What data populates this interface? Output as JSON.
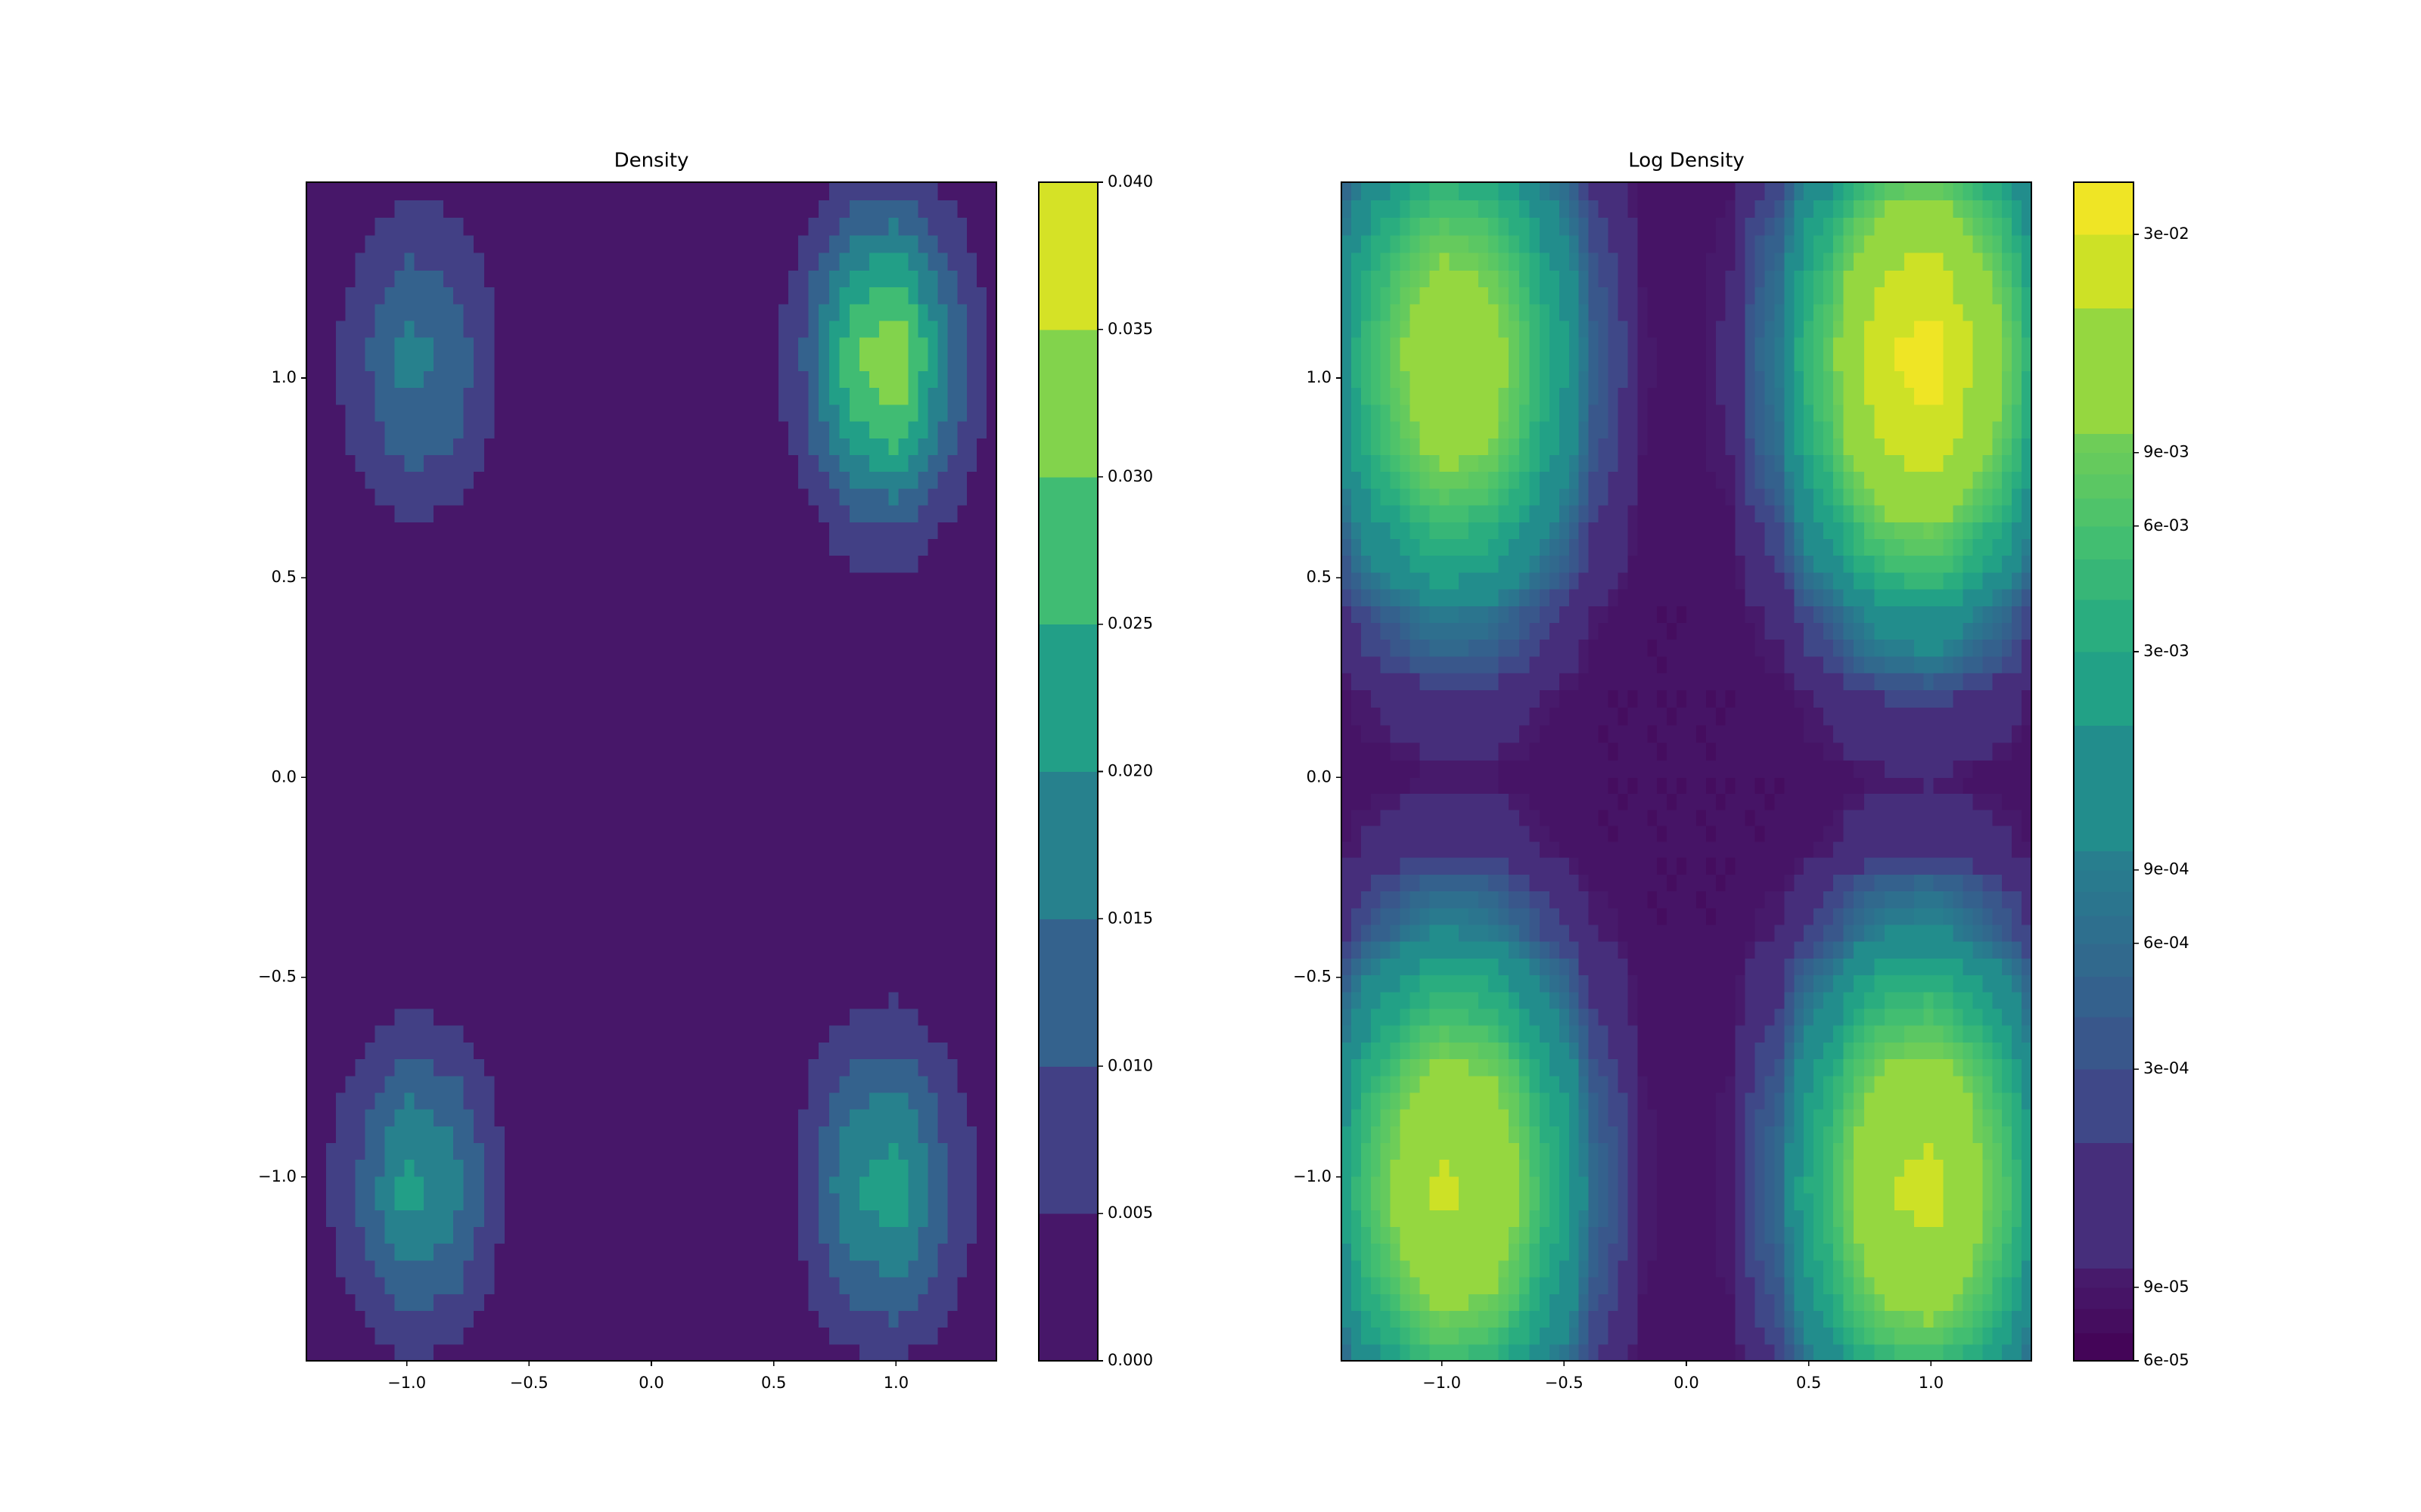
{
  "chart_data": [
    {
      "type": "contourf",
      "title": "Density",
      "colormap": "viridis",
      "color_scale": "linear",
      "x": [
        -1.41,
        -1.21,
        -1.01,
        -0.81,
        -0.6,
        -0.4,
        -0.2,
        0,
        0.2,
        0.4,
        0.6,
        0.81,
        1.01,
        1.21,
        1.41
      ],
      "y": [
        -1.46,
        -1.25,
        -1.04,
        -0.83,
        -0.62,
        -0.41,
        -0.2,
        0,
        0.22,
        0.43,
        0.64,
        0.85,
        1.06,
        1.27,
        1.49
      ],
      "z": [
        [
          0.00041,
          0.0021,
          0.0045,
          0.0037,
          0.0011,
          0.00019,
          8.4e-05,
          8e-05,
          8.4e-05,
          0.0002,
          0.0012,
          0.004,
          0.0049,
          0.0022,
          0.00044
        ],
        [
          0.0011,
          0.0065,
          0.0144,
          0.0118,
          0.0033,
          0.00042,
          9.3e-05,
          8e-05,
          9.4e-05,
          0.00045,
          0.0036,
          0.0128,
          0.0156,
          0.0071,
          0.0012
        ],
        [
          0.0017,
          0.01,
          0.022,
          0.018,
          0.0051,
          0.00061,
          0.0001,
          8e-05,
          0.0001,
          0.00066,
          0.0055,
          0.0197,
          0.024,
          0.0108,
          0.0019
        ],
        [
          0.0013,
          0.0075,
          0.0166,
          0.0136,
          0.0038,
          0.00048,
          9.5e-05,
          8e-05,
          9.6e-05,
          0.00051,
          0.0041,
          0.0148,
          0.018,
          0.0081,
          0.0014
        ],
        [
          0.00054,
          0.0029,
          0.0062,
          0.0051,
          0.0015,
          0.00023,
          8.6e-05,
          8e-05,
          8.6e-05,
          0.00024,
          0.0016,
          0.0056,
          0.0068,
          0.0031,
          0.00058
        ],
        [
          0.00016,
          0.00058,
          0.0012,
          0.00098,
          0.00033,
          0.00011,
          8e-05,
          8e-05,
          8e-05,
          0.00011,
          0.00035,
          0.0011,
          0.0013,
          0.00062,
          0.00017
        ],
        [
          8.8e-05,
          0.00013,
          0.00018,
          0.00016,
          0.0001,
          8e-05,
          8e-05,
          8e-05,
          8e-05,
          8e-05,
          0.0001,
          0.00017,
          0.00019,
          0.00013,
          8.8e-05
        ],
        [
          8e-05,
          8e-05,
          8.7e-05,
          8.5e-05,
          8e-05,
          8e-05,
          8e-05,
          8e-05,
          8e-05,
          8e-05,
          8e-05,
          8.9e-05,
          9.1e-05,
          8e-05,
          8e-05
        ],
        [
          8.6e-05,
          0.000116,
          0.000159,
          0.000145,
          9.8e-05,
          8e-05,
          8e-05,
          8e-05,
          8e-05,
          8.4e-05,
          0.000118,
          0.000217,
          0.000247,
          0.000155,
          9.2e-05
        ],
        [
          0.00014,
          0.00047,
          0.00094,
          0.00079,
          0.00027,
          0.0001,
          8e-05,
          8e-05,
          8.2e-05,
          0.00012,
          0.00049,
          0.0016,
          0.0019,
          0.0009,
          0.00022
        ],
        [
          0.00044,
          0.0023,
          0.0049,
          0.004,
          0.0012,
          0.0002,
          8.4e-05,
          8e-05,
          8.9e-05,
          0.00033,
          0.0024,
          0.0084,
          0.0103,
          0.0047,
          0.00084
        ],
        [
          0.001,
          0.0059,
          0.013,
          0.0107,
          0.003,
          0.00039,
          9.2e-05,
          8e-05,
          0.000105,
          0.00074,
          0.0062,
          0.0224,
          0.0273,
          0.0123,
          0.0021
        ],
        [
          0.0014,
          0.0078,
          0.0173,
          0.0142,
          0.004,
          0.00049,
          9.6e-05,
          8e-05,
          0.000113,
          0.00095,
          0.0083,
          0.0298,
          0.0364,
          0.0164,
          0.0028
        ],
        [
          0.00091,
          0.0051,
          0.0113,
          0.0092,
          0.0026,
          0.00035,
          9e-05,
          8e-05,
          0.000102,
          0.00065,
          0.0054,
          0.0194,
          0.0237,
          0.0107,
          0.0018
        ],
        [
          0.00034,
          0.0016,
          0.0035,
          0.0029,
          0.00086,
          0.00016,
          8.3e-05,
          8e-05,
          8.7e-05,
          0.00026,
          0.0017,
          0.006,
          0.0074,
          0.0034,
          0.00062
        ]
      ],
      "levels": [
        0,
        0.005,
        0.01,
        0.015,
        0.02,
        0.025,
        0.03,
        0.035,
        0.04
      ],
      "xlim": [
        -1.41,
        1.41
      ],
      "ylim": [
        -1.46,
        1.49
      ],
      "xticks": [
        {
          "value": -1,
          "label": "−1.0"
        },
        {
          "value": -0.5,
          "label": "−0.5"
        },
        {
          "value": 0,
          "label": "0.0"
        },
        {
          "value": 0.5,
          "label": "0.5"
        },
        {
          "value": 1,
          "label": "1.0"
        }
      ],
      "yticks": [
        {
          "value": -1,
          "label": "−1.0"
        },
        {
          "value": -0.5,
          "label": "−0.5"
        },
        {
          "value": 0,
          "label": "0.0"
        },
        {
          "value": 0.5,
          "label": "0.5"
        },
        {
          "value": 1,
          "label": "1.0"
        }
      ],
      "colorbar_lim": [
        0,
        0.04
      ],
      "colorbar_ticks": [
        {
          "value": 0,
          "label": "0.000"
        },
        {
          "value": 0.005,
          "label": "0.005"
        },
        {
          "value": 0.01,
          "label": "0.010"
        },
        {
          "value": 0.015,
          "label": "0.015"
        },
        {
          "value": 0.02,
          "label": "0.020"
        },
        {
          "value": 0.025,
          "label": "0.025"
        },
        {
          "value": 0.03,
          "label": "0.030"
        },
        {
          "value": 0.035,
          "label": "0.035"
        },
        {
          "value": 0.04,
          "label": "0.040"
        }
      ]
    },
    {
      "type": "contourf",
      "title": "Log Density",
      "colormap": "viridis",
      "color_scale": "log",
      "x": [
        -1.41,
        -1.21,
        -1.01,
        -0.81,
        -0.6,
        -0.4,
        -0.2,
        0,
        0.2,
        0.4,
        0.6,
        0.81,
        1.01,
        1.21,
        1.41
      ],
      "y": [
        -1.46,
        -1.25,
        -1.04,
        -0.83,
        -0.62,
        -0.41,
        -0.2,
        0,
        0.22,
        0.43,
        0.64,
        0.85,
        1.06,
        1.27,
        1.49
      ],
      "z": [
        [
          0.00041,
          0.0021,
          0.0045,
          0.0037,
          0.0011,
          0.00019,
          8.4e-05,
          8e-05,
          8.4e-05,
          0.0002,
          0.0012,
          0.004,
          0.0049,
          0.0022,
          0.00044
        ],
        [
          0.0011,
          0.0065,
          0.0144,
          0.0118,
          0.0033,
          0.00042,
          9.3e-05,
          8e-05,
          9.4e-05,
          0.00045,
          0.0036,
          0.0128,
          0.0156,
          0.0071,
          0.0012
        ],
        [
          0.0017,
          0.01,
          0.022,
          0.018,
          0.0051,
          0.00061,
          0.0001,
          8e-05,
          0.0001,
          0.00066,
          0.0055,
          0.0197,
          0.024,
          0.0108,
          0.0019
        ],
        [
          0.0013,
          0.0075,
          0.0166,
          0.0136,
          0.0038,
          0.00048,
          9.5e-05,
          8e-05,
          9.6e-05,
          0.00051,
          0.0041,
          0.0148,
          0.018,
          0.0081,
          0.0014
        ],
        [
          0.00054,
          0.0029,
          0.0062,
          0.0051,
          0.0015,
          0.00023,
          8.6e-05,
          8e-05,
          8.6e-05,
          0.00024,
          0.0016,
          0.0056,
          0.0068,
          0.0031,
          0.00058
        ],
        [
          0.00016,
          0.00058,
          0.0012,
          0.00098,
          0.00033,
          0.00011,
          8e-05,
          8e-05,
          8e-05,
          0.00011,
          0.00035,
          0.0011,
          0.0013,
          0.00062,
          0.00017
        ],
        [
          8.8e-05,
          0.00013,
          0.00018,
          0.00016,
          0.0001,
          8e-05,
          8e-05,
          8e-05,
          8e-05,
          8e-05,
          0.0001,
          0.00017,
          0.00019,
          0.00013,
          8.8e-05
        ],
        [
          8e-05,
          8e-05,
          8.7e-05,
          8.5e-05,
          8e-05,
          8e-05,
          8e-05,
          8e-05,
          8e-05,
          8e-05,
          8e-05,
          8.9e-05,
          9.1e-05,
          8e-05,
          8e-05
        ],
        [
          8.6e-05,
          0.000116,
          0.000159,
          0.000145,
          9.8e-05,
          8e-05,
          8e-05,
          8e-05,
          8e-05,
          8.4e-05,
          0.000118,
          0.000217,
          0.000247,
          0.000155,
          9.2e-05
        ],
        [
          0.00014,
          0.00047,
          0.00094,
          0.00079,
          0.00027,
          0.0001,
          8e-05,
          8e-05,
          8.2e-05,
          0.00012,
          0.00049,
          0.0016,
          0.0019,
          0.0009,
          0.00022
        ],
        [
          0.00044,
          0.0023,
          0.0049,
          0.004,
          0.0012,
          0.0002,
          8.4e-05,
          8e-05,
          8.9e-05,
          0.00033,
          0.0024,
          0.0084,
          0.0103,
          0.0047,
          0.00084
        ],
        [
          0.001,
          0.0059,
          0.013,
          0.0107,
          0.003,
          0.00039,
          9.2e-05,
          8e-05,
          0.000105,
          0.00074,
          0.0062,
          0.0224,
          0.0273,
          0.0123,
          0.0021
        ],
        [
          0.0014,
          0.0078,
          0.0173,
          0.0142,
          0.004,
          0.00049,
          9.6e-05,
          8e-05,
          0.000113,
          0.00095,
          0.0083,
          0.0298,
          0.0364,
          0.0164,
          0.0028
        ],
        [
          0.00091,
          0.0051,
          0.0113,
          0.0092,
          0.0026,
          0.00035,
          9e-05,
          8e-05,
          0.000102,
          0.00065,
          0.0054,
          0.0194,
          0.0237,
          0.0107,
          0.0018
        ],
        [
          0.00034,
          0.0016,
          0.0035,
          0.0029,
          0.00086,
          0.00016,
          8.3e-05,
          8e-05,
          8.7e-05,
          0.00026,
          0.0017,
          0.006,
          0.0074,
          0.0034,
          0.00062
        ]
      ],
      "levels": [
        6e-05,
        7e-05,
        8e-05,
        9e-05,
        0.0001,
        0.0002,
        0.0003,
        0.0004,
        0.0005,
        0.0006,
        0.0007,
        0.0008,
        0.0009,
        0.001,
        0.002,
        0.003,
        0.004,
        0.005,
        0.006,
        0.007,
        0.008,
        0.009,
        0.01,
        0.02,
        0.03,
        0.04
      ],
      "xlim": [
        -1.41,
        1.41
      ],
      "ylim": [
        -1.46,
        1.49
      ],
      "xticks": [
        {
          "value": -1,
          "label": "−1.0"
        },
        {
          "value": -0.5,
          "label": "−0.5"
        },
        {
          "value": 0,
          "label": "0.0"
        },
        {
          "value": 0.5,
          "label": "0.5"
        },
        {
          "value": 1,
          "label": "1.0"
        }
      ],
      "yticks": [
        {
          "value": -1,
          "label": "−1.0"
        },
        {
          "value": -0.5,
          "label": "−0.5"
        },
        {
          "value": 0,
          "label": "0.0"
        },
        {
          "value": 0.5,
          "label": "0.5"
        },
        {
          "value": 1,
          "label": "1.0"
        }
      ],
      "colorbar_lim": [
        6e-05,
        0.04
      ],
      "colorbar_ticks": [
        {
          "value": 6e-05,
          "label": "6e-05"
        },
        {
          "value": 9e-05,
          "label": "9e-05"
        },
        {
          "value": 0.0003,
          "label": "3e-04"
        },
        {
          "value": 0.0006,
          "label": "6e-04"
        },
        {
          "value": 0.0009,
          "label": "9e-04"
        },
        {
          "value": 0.003,
          "label": "3e-03"
        },
        {
          "value": 0.006,
          "label": "6e-03"
        },
        {
          "value": 0.009,
          "label": "9e-03"
        },
        {
          "value": 0.03,
          "label": "3e-02"
        }
      ]
    }
  ]
}
